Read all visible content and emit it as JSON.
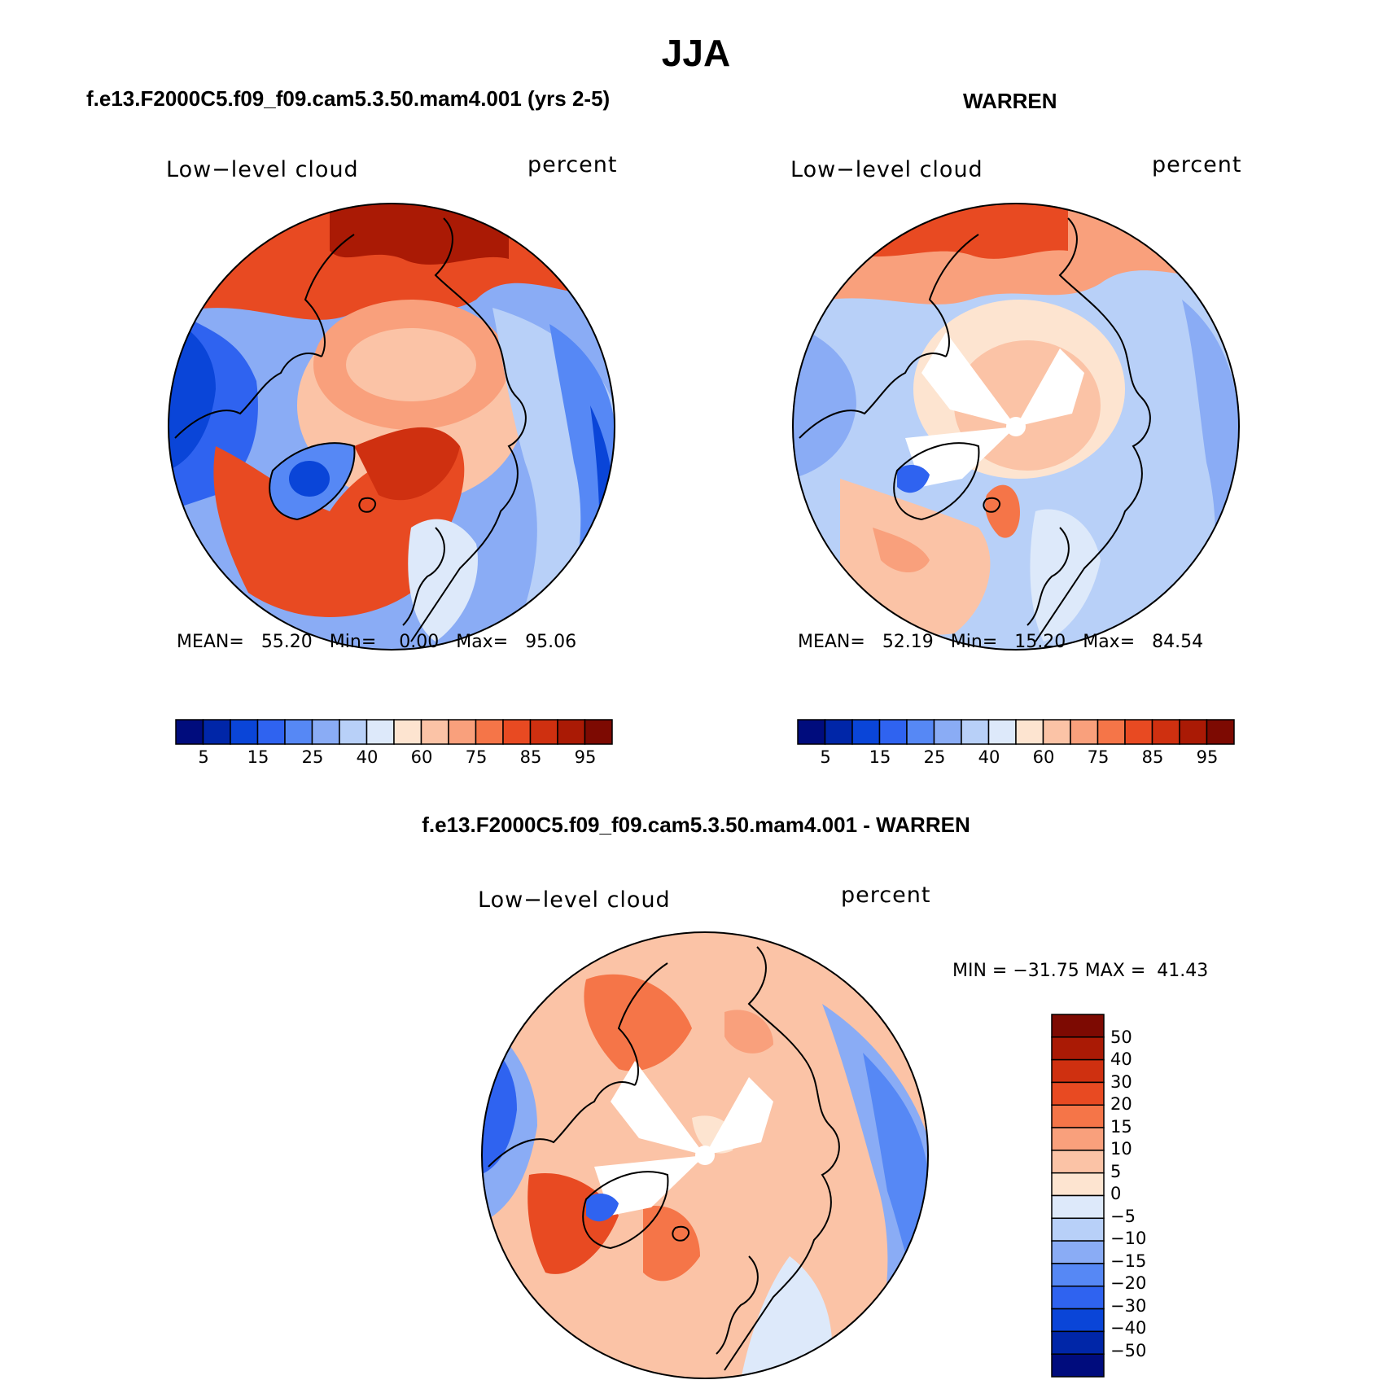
{
  "figure": {
    "season": "JJA"
  },
  "panels": [
    {
      "title": "f.e13.F2000C5.f09_f09.cam5.3.50.mam4.001 (yrs 2-5)",
      "variable": "Low−level cloud",
      "units": "percent",
      "stats": {
        "mean_label": "MEAN=",
        "mean": "55.20",
        "min_label": "Min=",
        "min": "0.00",
        "max_label": "Max=",
        "max": "95.06"
      },
      "colorbar_ticks": [
        "5",
        "15",
        "25",
        "40",
        "60",
        "75",
        "85",
        "95"
      ]
    },
    {
      "title": "WARREN",
      "variable": "Low−level cloud",
      "units": "percent",
      "stats": {
        "mean_label": "MEAN=",
        "mean": "52.19",
        "min_label": "Min=",
        "min": "15.20",
        "max_label": "Max=",
        "max": "84.54"
      },
      "colorbar_ticks": [
        "5",
        "15",
        "25",
        "40",
        "60",
        "75",
        "85",
        "95"
      ]
    },
    {
      "title": "f.e13.F2000C5.f09_f09.cam5.3.50.mam4.001 - WARREN",
      "variable": "Low−level cloud",
      "units": "percent",
      "stats_text": "MIN = −31.75 MAX =  41.43",
      "colorbar_ticks": [
        "50",
        "40",
        "30",
        "20",
        "15",
        "10",
        "5",
        "0",
        "−5",
        "−10",
        "−15",
        "−20",
        "−30",
        "−40",
        "−50"
      ]
    }
  ],
  "palettes": {
    "absolute": [
      "#000c7d",
      "#0026a8",
      "#0a45d8",
      "#2f63f0",
      "#5688f5",
      "#8aacf5",
      "#b8d0f8",
      "#dde9fa",
      "#fde4d0",
      "#fbc3a6",
      "#f9a07c",
      "#f57548",
      "#e84a22",
      "#cf3010",
      "#aa1a05",
      "#7d0a02"
    ],
    "difference": [
      "#000c7d",
      "#0026a8",
      "#0a45d8",
      "#2f63f0",
      "#5688f5",
      "#8aacf5",
      "#b8d0f8",
      "#dde9fa",
      "#fde4d0",
      "#fbc3a6",
      "#f9a07c",
      "#f57548",
      "#e84a22",
      "#cf3010",
      "#aa1a05",
      "#7d0a02"
    ]
  }
}
